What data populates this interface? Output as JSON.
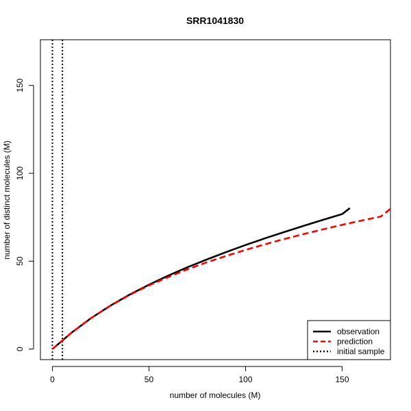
{
  "chart_data": {
    "type": "line",
    "title": "SRR1041830",
    "xlabel": "number of molecules (M)",
    "ylabel": "number of distinct molecules (M)",
    "xlim": [
      -6.2,
      175
    ],
    "ylim": [
      -6,
      176
    ],
    "xticks": [
      0,
      50,
      100,
      150
    ],
    "yticks": [
      0,
      50,
      100,
      150
    ],
    "grid": false,
    "legend_position": "bottom-right",
    "series": [
      {
        "name": "observation",
        "color": "#000000",
        "style": "solid",
        "x": [
          0,
          10,
          20,
          30,
          40,
          50,
          60,
          70,
          80,
          90,
          100,
          110,
          120,
          130,
          140,
          150,
          154
        ],
        "y": [
          0,
          9.4,
          17.6,
          24.7,
          31.0,
          36.6,
          41.8,
          46.6,
          51.0,
          55.2,
          59.2,
          63.0,
          66.6,
          70.1,
          73.5,
          76.8,
          80.2
        ]
      },
      {
        "name": "prediction",
        "color": "#ff0000",
        "style": "dashed",
        "x": [
          0,
          10,
          20,
          30,
          40,
          50,
          60,
          70,
          80,
          90,
          100,
          110,
          120,
          130,
          140,
          150,
          160,
          170,
          175
        ],
        "y": [
          0,
          9.4,
          17.6,
          24.6,
          30.8,
          36.2,
          41.0,
          45.4,
          49.4,
          53.0,
          56.4,
          59.6,
          62.6,
          65.4,
          68.1,
          70.7,
          73.1,
          75.4,
          79.8
        ]
      }
    ],
    "vlines": {
      "name": "initial sample",
      "color": "#000000",
      "style": "dotted",
      "x": [
        0,
        5.2
      ]
    }
  }
}
